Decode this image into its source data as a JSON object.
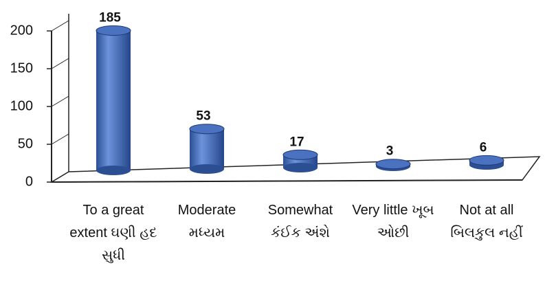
{
  "chart_data": {
    "type": "bar",
    "categories": [
      "To a great extent ઘણી હદ સુધી",
      "Moderate મધ્યમ",
      "Somewhat કંઈક અંશે",
      "Very little ખૂબ ઓછી",
      "Not at all બિલકુલ નહીં"
    ],
    "values": [
      185,
      53,
      17,
      3,
      6
    ],
    "color": "#4a72c0",
    "ylim": [
      0,
      200
    ],
    "yticks": [
      0,
      50,
      100,
      150,
      200
    ]
  }
}
